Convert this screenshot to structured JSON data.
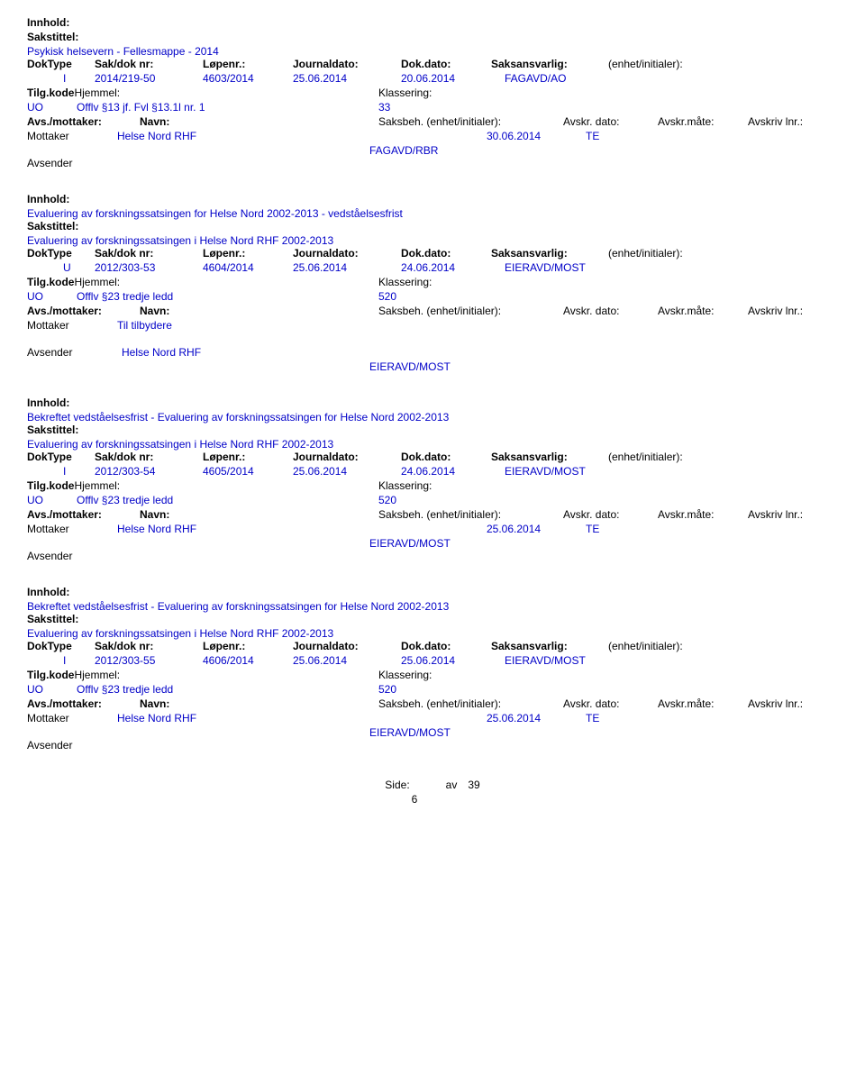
{
  "labels": {
    "innhold": "Innhold:",
    "sakstittel": "Sakstittel:",
    "doktype": "DokType",
    "sakdok": "Sak/dok nr:",
    "lopenr": "Løpenr.:",
    "journaldato": "Journaldato:",
    "dokdato": "Dok.dato:",
    "saksansvarlig": "Saksansvarlig:",
    "enhet": "(enhet/initialer):",
    "tilgkode": "Tilg.kode",
    "hjemmel": "Hjemmel:",
    "klassering": "Klassering:",
    "avsmottaker": "Avs./mottaker:",
    "navn": "Navn:",
    "saksbeh": "Saksbeh. (enhet/initialer):",
    "avskrdato": "Avskr. dato:",
    "avskrmate": "Avskr.måte:",
    "avskrivlnr": "Avskriv lnr.:",
    "mottaker": "Mottaker",
    "avsender": "Avsender"
  },
  "entries": [
    {
      "title": "Psykisk helsevern - Fellesmappe - 2014",
      "doktype": "I",
      "sakdok": "2014/219-50",
      "lopenr": "4603/2014",
      "journaldato": "25.06.2014",
      "dokdato": "20.06.2014",
      "saksansvarlig": "FAGAVD/AO",
      "tilgkode": "UO",
      "hjemmel": "Offlv §13 jf. Fvl §13.1l nr. 1",
      "klassering": "33",
      "mottaker_name": "Helse Nord RHF",
      "mottaker_dato": "30.06.2014",
      "mottaker_mate": "TE",
      "avsender_name": "",
      "sender_dept": "FAGAVD/RBR"
    },
    {
      "innhold_text": "Evaluering av forskningssatsingen for Helse Nord 2002-2013 - vedståelsesfrist",
      "title": "Evaluering av forskningssatsingen i Helse Nord RHF 2002-2013",
      "doktype": "U",
      "sakdok": "2012/303-53",
      "lopenr": "4604/2014",
      "journaldato": "25.06.2014",
      "dokdato": "24.06.2014",
      "saksansvarlig": "EIERAVD/MOST",
      "tilgkode": "UO",
      "hjemmel": "Offlv §23 tredje ledd",
      "klassering": "520",
      "mottaker_name": "Til tilbydere",
      "mottaker_dato": "",
      "mottaker_mate": "",
      "avsender_name": "Helse Nord RHF",
      "sender_dept": "EIERAVD/MOST"
    },
    {
      "innhold_text": "Bekreftet vedståelsesfrist -   Evaluering av forskningssatsingen for Helse Nord 2002-2013",
      "title": "Evaluering av forskningssatsingen i Helse Nord RHF 2002-2013",
      "doktype": "I",
      "sakdok": "2012/303-54",
      "lopenr": "4605/2014",
      "journaldato": "25.06.2014",
      "dokdato": "24.06.2014",
      "saksansvarlig": "EIERAVD/MOST",
      "tilgkode": "UO",
      "hjemmel": "Offlv §23 tredje ledd",
      "klassering": "520",
      "mottaker_name": "Helse Nord RHF",
      "mottaker_dato": "25.06.2014",
      "mottaker_mate": "TE",
      "avsender_name": "",
      "sender_dept": "EIERAVD/MOST"
    },
    {
      "innhold_text": "Bekreftet vedståelsesfrist - Evaluering av forskningssatsingen for Helse Nord 2002-2013",
      "title": "Evaluering av forskningssatsingen i Helse Nord RHF 2002-2013",
      "doktype": "I",
      "sakdok": "2012/303-55",
      "lopenr": "4606/2014",
      "journaldato": "25.06.2014",
      "dokdato": "25.06.2014",
      "saksansvarlig": "EIERAVD/MOST",
      "tilgkode": "UO",
      "hjemmel": "Offlv §23 tredje ledd",
      "klassering": "520",
      "mottaker_name": "Helse Nord RHF",
      "mottaker_dato": "25.06.2014",
      "mottaker_mate": "TE",
      "avsender_name": "",
      "sender_dept": "EIERAVD/MOST"
    }
  ],
  "footer": {
    "side": "Side:",
    "av": "av",
    "total": "39",
    "page": "6"
  }
}
